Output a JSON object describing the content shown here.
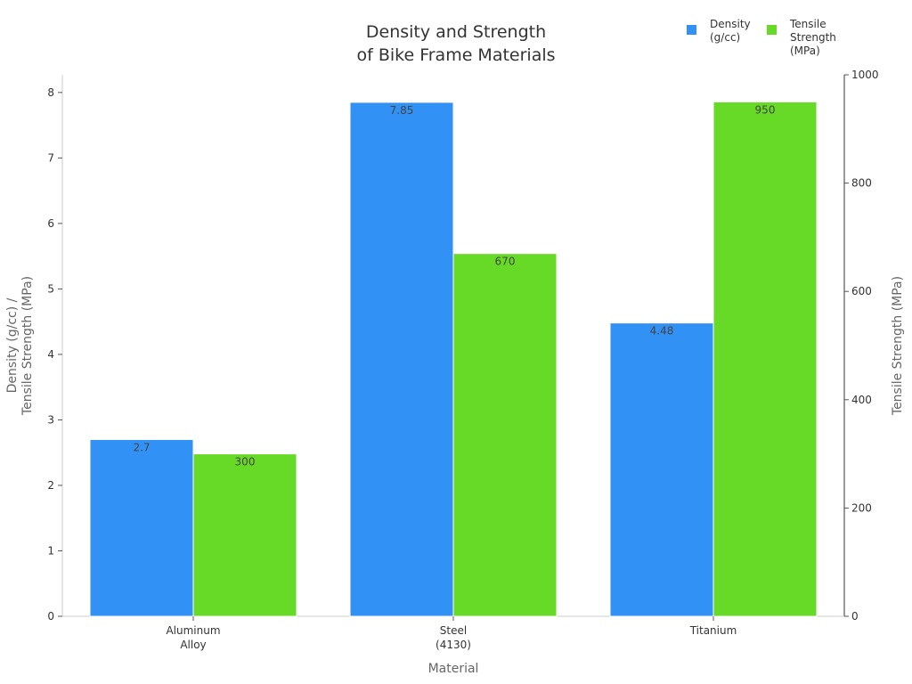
{
  "chart_data": {
    "type": "bar",
    "title": "Density and Strength of Bike Frame Materials",
    "title_lines": [
      "Density and Strength",
      "of Bike Frame Materials"
    ],
    "xlabel": "Material",
    "ylabel_lines": [
      "Density (g/cc) /",
      "Tensile Strength (MPa)"
    ],
    "y2label": "Tensile Strength (MPa)",
    "categories": [
      {
        "lines": [
          "Aluminum",
          "Alloy"
        ]
      },
      {
        "lines": [
          "Steel",
          "(4130)"
        ]
      },
      {
        "lines": [
          "Titanium"
        ]
      }
    ],
    "series": [
      {
        "name_lines": [
          "Density",
          "(g/cc)"
        ],
        "axis": "left",
        "color": "#3291f5",
        "values": [
          2.7,
          7.85,
          4.48
        ],
        "labels": [
          "2.7",
          "7.85",
          "4.48"
        ]
      },
      {
        "name_lines": [
          "Tensile",
          "Strength",
          "(MPa)"
        ],
        "axis": "right",
        "color": "#66da27",
        "values": [
          300,
          670,
          950
        ],
        "labels": [
          "300",
          "670",
          "950"
        ]
      }
    ],
    "ylim": [
      0,
      8.27
    ],
    "y2lim": [
      0,
      1000
    ],
    "yticks": [
      0,
      1,
      2,
      3,
      4,
      5,
      6,
      7,
      8
    ],
    "y2ticks": [
      0,
      200,
      400,
      600,
      800,
      1000
    ],
    "grid": false,
    "legend_position": "top-right"
  }
}
